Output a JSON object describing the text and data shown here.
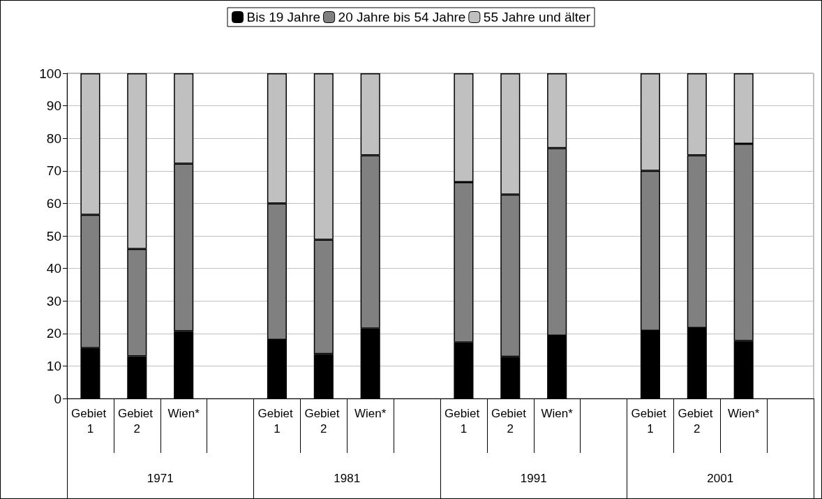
{
  "chart_data": {
    "type": "bar",
    "stacked": true,
    "categories": [
      "Gebiet 1",
      "Gebiet 2",
      "Wien*",
      null,
      "Gebiet 1",
      "Gebiet 2",
      "Wien*",
      null,
      "Gebiet 1",
      "Gebiet 2",
      "Wien*",
      null,
      "Gebiet 1",
      "Gebiet 2",
      "Wien*",
      null
    ],
    "series": [
      {
        "name": "Bis 19 Jahre",
        "color": "#000000",
        "values": [
          15.5,
          13,
          20.7,
          null,
          18,
          13.7,
          21.5,
          null,
          17.2,
          12.8,
          19.3,
          null,
          20.8,
          21.7,
          17.7,
          null
        ]
      },
      {
        "name": "20 Jahre bis 54 Jahre",
        "color": "#808080",
        "values": [
          41,
          33,
          51.5,
          null,
          42,
          35.1,
          53.3,
          null,
          49.3,
          49.9,
          57.7,
          null,
          49.2,
          53.1,
          60.6,
          null
        ]
      },
      {
        "name": "55 Jahre und älter",
        "color": "#c0c0c0",
        "values": [
          43.5,
          54,
          27.8,
          null,
          40,
          51.2,
          25.2,
          null,
          33.5,
          37.3,
          23,
          null,
          30,
          25.2,
          21.7,
          null
        ]
      }
    ],
    "annotations": [
      "1971",
      "1981",
      "1991",
      "2001"
    ],
    "ylim": [
      0,
      100
    ],
    "yticks": [
      0,
      10,
      20,
      30,
      40,
      50,
      60,
      70,
      80,
      90,
      100
    ],
    "grid": "y",
    "legend": "top"
  }
}
